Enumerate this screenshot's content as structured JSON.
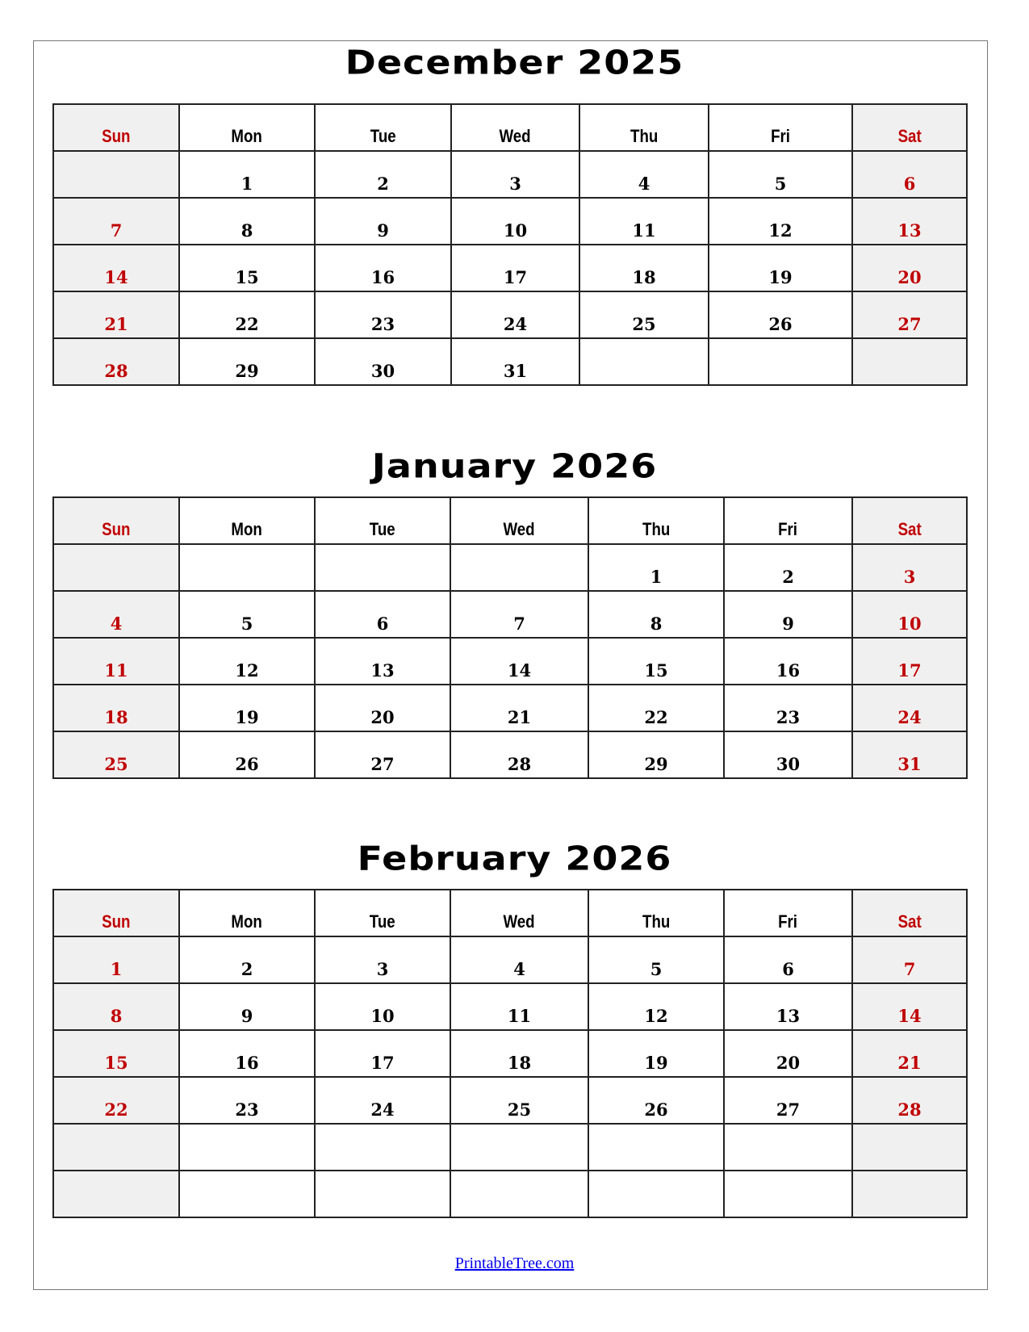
{
  "weekdays": [
    "Sun",
    "Mon",
    "Tue",
    "Wed",
    "Thu",
    "Fri",
    "Sat"
  ],
  "colors": {
    "weekend_text": "#c00000",
    "weekend_fill": "#f0f0f0",
    "weekday_text": "#000000",
    "link": "#0000ee"
  },
  "months": [
    {
      "title": "December 2025",
      "weeks": [
        [
          "",
          "1",
          "2",
          "3",
          "4",
          "5",
          "6"
        ],
        [
          "7",
          "8",
          "9",
          "10",
          "11",
          "12",
          "13"
        ],
        [
          "14",
          "15",
          "16",
          "17",
          "18",
          "19",
          "20"
        ],
        [
          "21",
          "22",
          "23",
          "24",
          "25",
          "26",
          "27"
        ],
        [
          "28",
          "29",
          "30",
          "31",
          "",
          "",
          ""
        ]
      ]
    },
    {
      "title": "January 2026",
      "weeks": [
        [
          "",
          "",
          "",
          "",
          "1",
          "2",
          "3"
        ],
        [
          "4",
          "5",
          "6",
          "7",
          "8",
          "9",
          "10"
        ],
        [
          "11",
          "12",
          "13",
          "14",
          "15",
          "16",
          "17"
        ],
        [
          "18",
          "19",
          "20",
          "21",
          "22",
          "23",
          "24"
        ],
        [
          "25",
          "26",
          "27",
          "28",
          "29",
          "30",
          "31"
        ]
      ]
    },
    {
      "title": "February 2026",
      "weeks": [
        [
          "1",
          "2",
          "3",
          "4",
          "5",
          "6",
          "7"
        ],
        [
          "8",
          "9",
          "10",
          "11",
          "12",
          "13",
          "14"
        ],
        [
          "15",
          "16",
          "17",
          "18",
          "19",
          "20",
          "21"
        ],
        [
          "22",
          "23",
          "24",
          "25",
          "26",
          "27",
          "28"
        ],
        [
          "",
          "",
          "",
          "",
          "",
          "",
          ""
        ],
        [
          "",
          "",
          "",
          "",
          "",
          "",
          ""
        ]
      ]
    }
  ],
  "footer": {
    "link_text": "PrintableTree.com"
  }
}
